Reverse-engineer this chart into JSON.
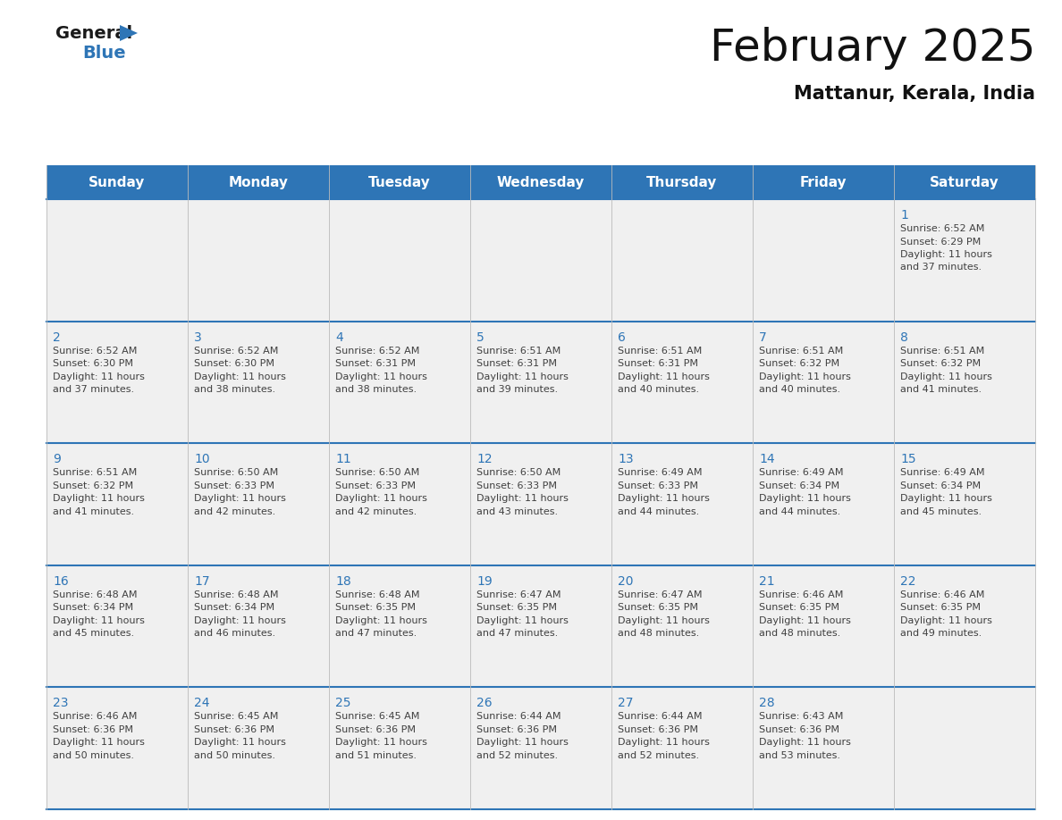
{
  "title": "February 2025",
  "subtitle": "Mattanur, Kerala, India",
  "header_bg": "#2E75B6",
  "header_text_color": "#FFFFFF",
  "cell_bg": "#F0F0F0",
  "day_number_color": "#2E75B6",
  "text_color": "#404040",
  "line_color": "#2E75B6",
  "border_color": "#2E75B6",
  "days_of_week": [
    "Sunday",
    "Monday",
    "Tuesday",
    "Wednesday",
    "Thursday",
    "Friday",
    "Saturday"
  ],
  "calendar": [
    [
      null,
      null,
      null,
      null,
      null,
      null,
      {
        "day": 1,
        "sunrise": "6:52 AM",
        "sunset": "6:29 PM",
        "daylight": "11 hours",
        "daylight2": "and 37 minutes."
      }
    ],
    [
      {
        "day": 2,
        "sunrise": "6:52 AM",
        "sunset": "6:30 PM",
        "daylight": "11 hours",
        "daylight2": "and 37 minutes."
      },
      {
        "day": 3,
        "sunrise": "6:52 AM",
        "sunset": "6:30 PM",
        "daylight": "11 hours",
        "daylight2": "and 38 minutes."
      },
      {
        "day": 4,
        "sunrise": "6:52 AM",
        "sunset": "6:31 PM",
        "daylight": "11 hours",
        "daylight2": "and 38 minutes."
      },
      {
        "day": 5,
        "sunrise": "6:51 AM",
        "sunset": "6:31 PM",
        "daylight": "11 hours",
        "daylight2": "and 39 minutes."
      },
      {
        "day": 6,
        "sunrise": "6:51 AM",
        "sunset": "6:31 PM",
        "daylight": "11 hours",
        "daylight2": "and 40 minutes."
      },
      {
        "day": 7,
        "sunrise": "6:51 AM",
        "sunset": "6:32 PM",
        "daylight": "11 hours",
        "daylight2": "and 40 minutes."
      },
      {
        "day": 8,
        "sunrise": "6:51 AM",
        "sunset": "6:32 PM",
        "daylight": "11 hours",
        "daylight2": "and 41 minutes."
      }
    ],
    [
      {
        "day": 9,
        "sunrise": "6:51 AM",
        "sunset": "6:32 PM",
        "daylight": "11 hours",
        "daylight2": "and 41 minutes."
      },
      {
        "day": 10,
        "sunrise": "6:50 AM",
        "sunset": "6:33 PM",
        "daylight": "11 hours",
        "daylight2": "and 42 minutes."
      },
      {
        "day": 11,
        "sunrise": "6:50 AM",
        "sunset": "6:33 PM",
        "daylight": "11 hours",
        "daylight2": "and 42 minutes."
      },
      {
        "day": 12,
        "sunrise": "6:50 AM",
        "sunset": "6:33 PM",
        "daylight": "11 hours",
        "daylight2": "and 43 minutes."
      },
      {
        "day": 13,
        "sunrise": "6:49 AM",
        "sunset": "6:33 PM",
        "daylight": "11 hours",
        "daylight2": "and 44 minutes."
      },
      {
        "day": 14,
        "sunrise": "6:49 AM",
        "sunset": "6:34 PM",
        "daylight": "11 hours",
        "daylight2": "and 44 minutes."
      },
      {
        "day": 15,
        "sunrise": "6:49 AM",
        "sunset": "6:34 PM",
        "daylight": "11 hours",
        "daylight2": "and 45 minutes."
      }
    ],
    [
      {
        "day": 16,
        "sunrise": "6:48 AM",
        "sunset": "6:34 PM",
        "daylight": "11 hours",
        "daylight2": "and 45 minutes."
      },
      {
        "day": 17,
        "sunrise": "6:48 AM",
        "sunset": "6:34 PM",
        "daylight": "11 hours",
        "daylight2": "and 46 minutes."
      },
      {
        "day": 18,
        "sunrise": "6:48 AM",
        "sunset": "6:35 PM",
        "daylight": "11 hours",
        "daylight2": "and 47 minutes."
      },
      {
        "day": 19,
        "sunrise": "6:47 AM",
        "sunset": "6:35 PM",
        "daylight": "11 hours",
        "daylight2": "and 47 minutes."
      },
      {
        "day": 20,
        "sunrise": "6:47 AM",
        "sunset": "6:35 PM",
        "daylight": "11 hours",
        "daylight2": "and 48 minutes."
      },
      {
        "day": 21,
        "sunrise": "6:46 AM",
        "sunset": "6:35 PM",
        "daylight": "11 hours",
        "daylight2": "and 48 minutes."
      },
      {
        "day": 22,
        "sunrise": "6:46 AM",
        "sunset": "6:35 PM",
        "daylight": "11 hours",
        "daylight2": "and 49 minutes."
      }
    ],
    [
      {
        "day": 23,
        "sunrise": "6:46 AM",
        "sunset": "6:36 PM",
        "daylight": "11 hours",
        "daylight2": "and 50 minutes."
      },
      {
        "day": 24,
        "sunrise": "6:45 AM",
        "sunset": "6:36 PM",
        "daylight": "11 hours",
        "daylight2": "and 50 minutes."
      },
      {
        "day": 25,
        "sunrise": "6:45 AM",
        "sunset": "6:36 PM",
        "daylight": "11 hours",
        "daylight2": "and 51 minutes."
      },
      {
        "day": 26,
        "sunrise": "6:44 AM",
        "sunset": "6:36 PM",
        "daylight": "11 hours",
        "daylight2": "and 52 minutes."
      },
      {
        "day": 27,
        "sunrise": "6:44 AM",
        "sunset": "6:36 PM",
        "daylight": "11 hours",
        "daylight2": "and 52 minutes."
      },
      {
        "day": 28,
        "sunrise": "6:43 AM",
        "sunset": "6:36 PM",
        "daylight": "11 hours",
        "daylight2": "and 53 minutes."
      },
      null
    ]
  ],
  "title_fontsize": 36,
  "subtitle_fontsize": 15,
  "header_fontsize": 11,
  "day_num_fontsize": 10,
  "cell_fontsize": 8
}
